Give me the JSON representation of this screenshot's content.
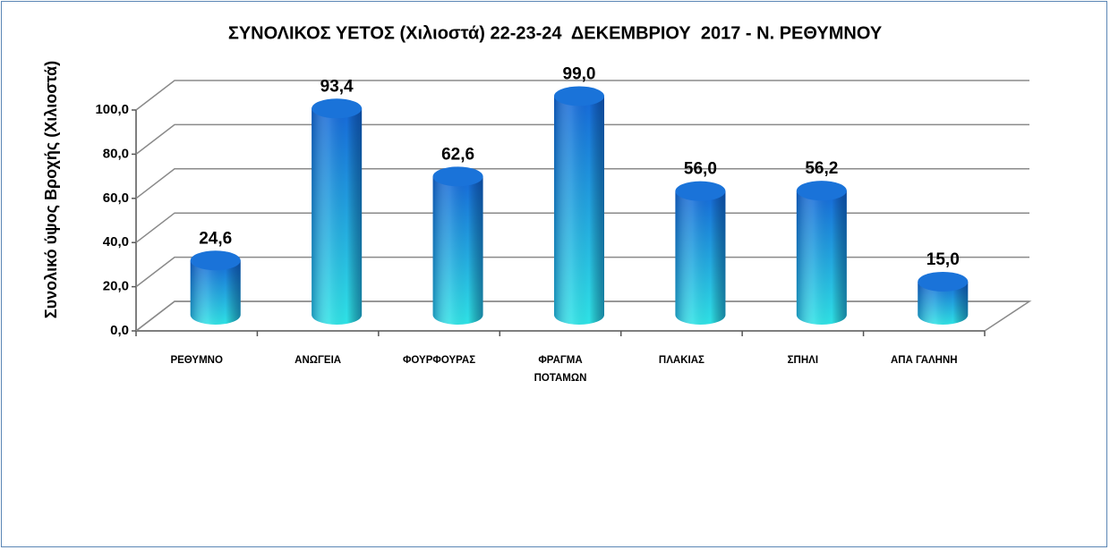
{
  "chart_data": {
    "type": "bar",
    "title": "ΣΥΝΟΛΙΚΟΣ ΥΕΤΟΣ (Χιλιοστά) 22-23-24  ΔΕΚΕΜΒΡΙΟΥ  2017 - Ν. ΡΕΘΥΜΝΟΥ",
    "y_label": "Συνολικό ύψος Βροχής (Χιλιοστά)",
    "categories": [
      "ΡΕΘΥΜΝΟ",
      "ΑΝΩΓΕΙΑ",
      "ΦΟΥΡΦΟΥΡΑΣ",
      "ΦΡΑΓΜΑ ΠΟΤΑΜΩΝ",
      "ΠΛΑΚΙΑΣ",
      "ΣΠΗΛΙ",
      "ΑΠΑ ΓΑΛΗΝΗ"
    ],
    "values": [
      24.6,
      93.4,
      62.6,
      99.0,
      56.0,
      56.2,
      15.0
    ],
    "value_labels": [
      "24,6",
      "93,4",
      "62,6",
      "99,0",
      "56,0",
      "56,2",
      "15,0"
    ],
    "color": "#1a73d9",
    "ylim": [
      0,
      100
    ],
    "yticks": [
      {
        "value": 0,
        "label": "0,0"
      },
      {
        "value": 20,
        "label": "20,0"
      },
      {
        "value": 40,
        "label": "40,0"
      },
      {
        "value": 60,
        "label": "60,0"
      },
      {
        "value": 80,
        "label": "80,0"
      },
      {
        "value": 100,
        "label": "100,0"
      }
    ],
    "grid": true
  }
}
